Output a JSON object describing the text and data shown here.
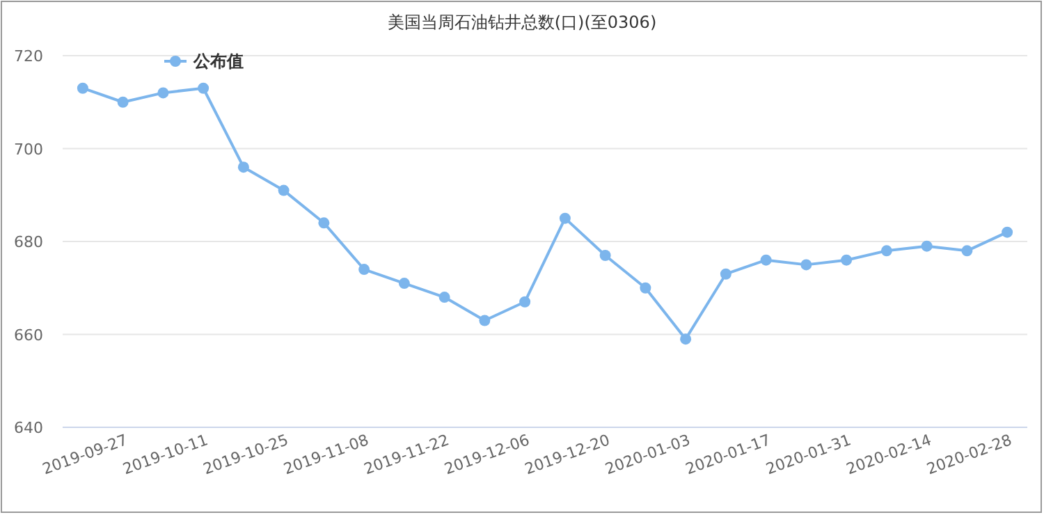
{
  "chart_data": {
    "type": "line",
    "title": "美国当周石油钻井总数(口)(至0306)",
    "categories": [
      null,
      "2019-09-27",
      null,
      "2019-10-11",
      null,
      "2019-10-25",
      null,
      "2019-11-08",
      null,
      "2019-11-22",
      null,
      "2019-12-06",
      null,
      "2019-12-20",
      null,
      "2020-01-03",
      null,
      "2020-01-17",
      null,
      "2020-01-31",
      null,
      "2020-02-14",
      null,
      "2020-02-28"
    ],
    "series": [
      {
        "name": "公布值",
        "color": "#7cb5ec",
        "values": [
          713,
          710,
          712,
          713,
          696,
          691,
          684,
          674,
          671,
          668,
          663,
          667,
          685,
          677,
          670,
          659,
          673,
          676,
          675,
          676,
          678,
          679,
          678,
          682
        ]
      }
    ],
    "ylim": [
      640,
      720
    ],
    "yticks": [
      640,
      660,
      680,
      700,
      720
    ],
    "grid": "y",
    "legend": "top left",
    "marker": "circle",
    "line_style": "solid"
  }
}
